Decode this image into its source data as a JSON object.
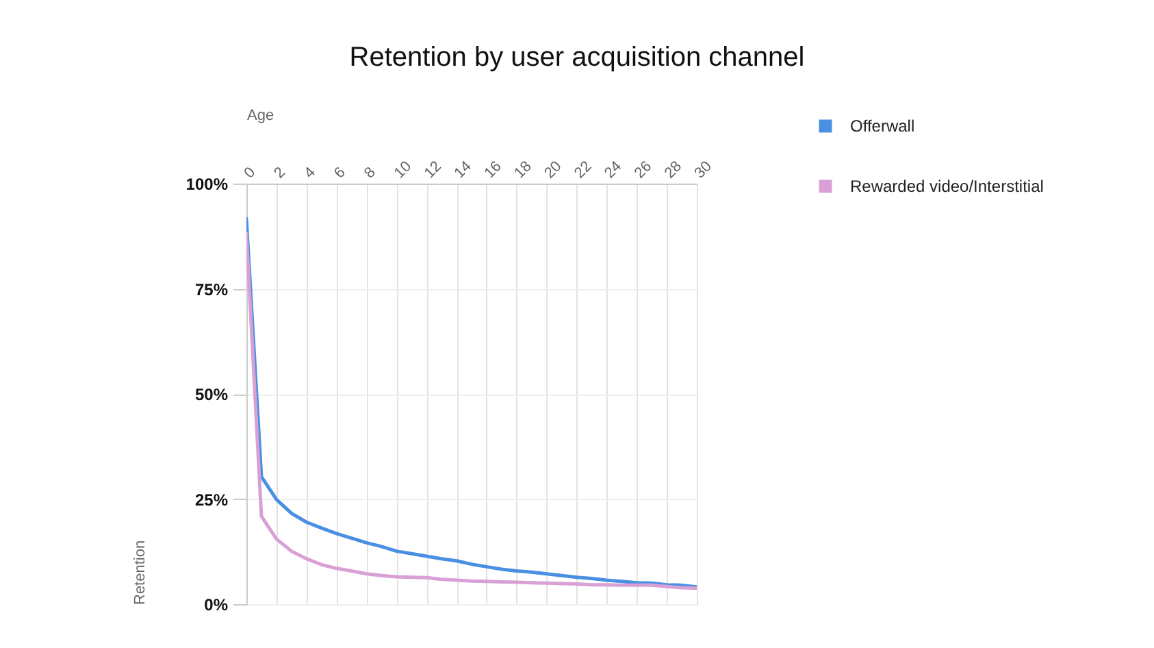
{
  "chart_data": {
    "type": "line",
    "title": "Retention by user acquisition channel",
    "xlabel": "Age",
    "ylabel": "Retention",
    "x": [
      0,
      1,
      2,
      3,
      4,
      5,
      6,
      7,
      8,
      9,
      10,
      11,
      12,
      13,
      14,
      15,
      16,
      17,
      18,
      19,
      20,
      21,
      22,
      23,
      24,
      25,
      26,
      27,
      28,
      29,
      30
    ],
    "series": [
      {
        "name": "Offerwall",
        "color": "#4a90e2",
        "values": [
          91.7,
          30.3,
          24.9,
          21.6,
          19.5,
          18.1,
          16.8,
          15.7,
          14.6,
          13.7,
          12.6,
          12.0,
          11.4,
          10.8,
          10.3,
          9.5,
          8.9,
          8.3,
          7.9,
          7.6,
          7.2,
          6.8,
          6.4,
          6.1,
          5.7,
          5.4,
          5.1,
          5.0,
          4.6,
          4.5,
          4.1
        ]
      },
      {
        "name": "Rewarded video/Interstitial",
        "color": "#d9a0d6",
        "values": [
          88.1,
          20.9,
          15.5,
          12.6,
          10.8,
          9.4,
          8.5,
          7.9,
          7.2,
          6.8,
          6.5,
          6.4,
          6.3,
          5.9,
          5.7,
          5.5,
          5.4,
          5.3,
          5.2,
          5.1,
          5.0,
          4.9,
          4.8,
          4.6,
          4.6,
          4.5,
          4.5,
          4.5,
          4.2,
          3.9,
          3.8
        ]
      }
    ],
    "xlim": [
      0,
      30
    ],
    "xticks": [
      0,
      2,
      4,
      6,
      8,
      10,
      12,
      14,
      16,
      18,
      20,
      22,
      24,
      26,
      28,
      30
    ],
    "ylim": [
      0,
      100
    ],
    "yticks": [
      {
        "value": 0,
        "label": "0%"
      },
      {
        "value": 25,
        "label": "25%"
      },
      {
        "value": 50,
        "label": "50%"
      },
      {
        "value": 75,
        "label": "75%"
      },
      {
        "value": 100,
        "label": "100%"
      }
    ],
    "grid": true,
    "legend": "right",
    "line_style": "solid"
  }
}
